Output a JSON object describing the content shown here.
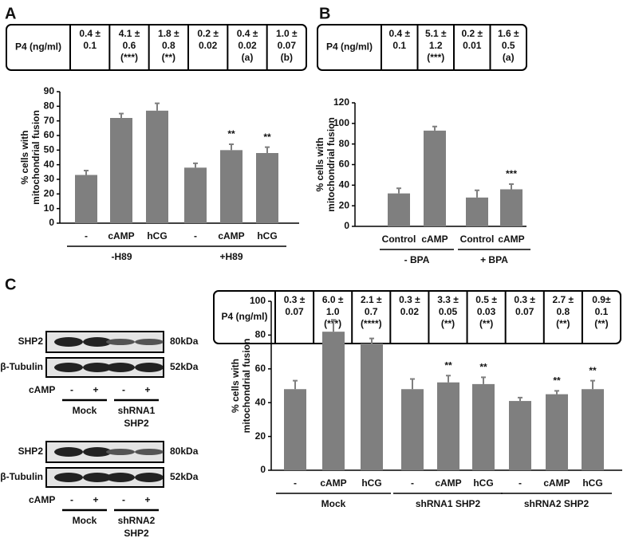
{
  "panel_labels": [
    "A",
    "B",
    "C"
  ],
  "p4_tables": [
    {
      "header": "P4 (ng/ml)",
      "cells": [
        [
          "0.4 ±",
          "0.1"
        ],
        [
          "4.1 ±",
          "0.6",
          "(***)"
        ],
        [
          "1.8 ±",
          "0.8",
          "(**)"
        ],
        [
          "0.2 ±",
          "0.02"
        ],
        [
          "0.4 ±",
          "0.02",
          "(a)"
        ],
        [
          "1.0 ±",
          "0.07",
          "(b)"
        ]
      ]
    },
    {
      "header": "P4 (ng/ml)",
      "cells": [
        [
          "0.4 ±",
          "0.1"
        ],
        [
          "5.1 ±",
          "1.2",
          "(***)"
        ],
        [
          "0.2 ±",
          "0.01"
        ],
        [
          "1.6 ±",
          "0.5",
          "(a)"
        ]
      ]
    },
    {
      "header": "P4 (ng/ml)",
      "cells": [
        [
          "0.3 ±",
          "0.07"
        ],
        [
          "6.0 ±",
          "1.0",
          "(***)"
        ],
        [
          "2.1 ±",
          "0.7",
          "(****)"
        ],
        [
          "0.3 ±",
          "0.02"
        ],
        [
          "3.3 ±",
          "0.05",
          "(**)"
        ],
        [
          "0.5 ±",
          "0.03",
          "(**)"
        ],
        [
          "0.3 ±",
          "0.07"
        ],
        [
          "2.7 ±",
          "0.8",
          "(**)"
        ],
        [
          "0.9±",
          "0.1",
          "(**)"
        ]
      ]
    }
  ],
  "chart_data": [
    {
      "type": "bar",
      "ylabel": [
        "% cells with",
        "mitochondrial fusion"
      ],
      "color": "#7f7f7f",
      "categories": [
        "-",
        "cAMP",
        "hCG",
        "-",
        "cAMP",
        "hCG"
      ],
      "values": [
        33,
        72,
        77,
        38,
        50,
        48
      ],
      "errors": [
        3,
        3,
        5,
        3,
        4,
        4
      ],
      "significance": [
        null,
        null,
        null,
        null,
        "**",
        "**"
      ],
      "group_labels": [
        "-H89",
        "+H89"
      ],
      "ylim": [
        0,
        90
      ],
      "yticks": [
        0,
        10,
        20,
        30,
        40,
        50,
        60,
        70,
        80,
        90
      ]
    },
    {
      "type": "bar",
      "ylabel": [
        "% cells with",
        "mitochondrial fusion"
      ],
      "color": "#7f7f7f",
      "categories": [
        "Control",
        "cAMP",
        "Control",
        "cAMP"
      ],
      "values": [
        32,
        93,
        28,
        36
      ],
      "errors": [
        5,
        4,
        7,
        5
      ],
      "significance": [
        null,
        null,
        null,
        "***"
      ],
      "group_labels": [
        "- BPA",
        "+ BPA"
      ],
      "ylim": [
        0,
        120
      ],
      "yticks": [
        0,
        20,
        40,
        60,
        80,
        100,
        120
      ]
    },
    {
      "type": "bar",
      "ylabel": [
        "% cells with",
        "mitochondrial fusion"
      ],
      "color": "#7f7f7f",
      "categories": [
        "-",
        "cAMP",
        "hCG",
        "-",
        "cAMP",
        "hCG",
        "-",
        "cAMP",
        "hCG"
      ],
      "values": [
        48,
        82,
        75,
        48,
        52,
        51,
        41,
        45,
        48
      ],
      "errors": [
        5,
        7,
        3,
        6,
        4,
        4,
        2,
        2,
        5
      ],
      "significance": [
        null,
        null,
        null,
        null,
        "**",
        "**",
        null,
        "**",
        "**"
      ],
      "group_labels": [
        "Mock",
        "shRNA1 SHP2",
        "shRNA2 SHP2"
      ],
      "ylim": [
        0,
        100
      ],
      "yticks": [
        0,
        20,
        40,
        60,
        80,
        100
      ]
    }
  ],
  "blots": [
    {
      "rows": [
        {
          "name": "SHP2",
          "size": "80kDa"
        },
        {
          "name": "β-Tubulin",
          "size": "52kDa"
        }
      ],
      "treatment": "cAMP",
      "lanes": [
        "-",
        "+",
        "-",
        "+"
      ],
      "groups": [
        [
          "Mock"
        ],
        [
          "shRNA1",
          "SHP2"
        ]
      ]
    },
    {
      "rows": [
        {
          "name": "SHP2",
          "size": "80kDa"
        },
        {
          "name": "β-Tubulin",
          "size": "52kDa"
        }
      ],
      "treatment": "cAMP",
      "lanes": [
        "-",
        "+",
        "-",
        "+"
      ],
      "groups": [
        [
          "Mock"
        ],
        [
          "shRNA2",
          "SHP2"
        ]
      ]
    }
  ]
}
